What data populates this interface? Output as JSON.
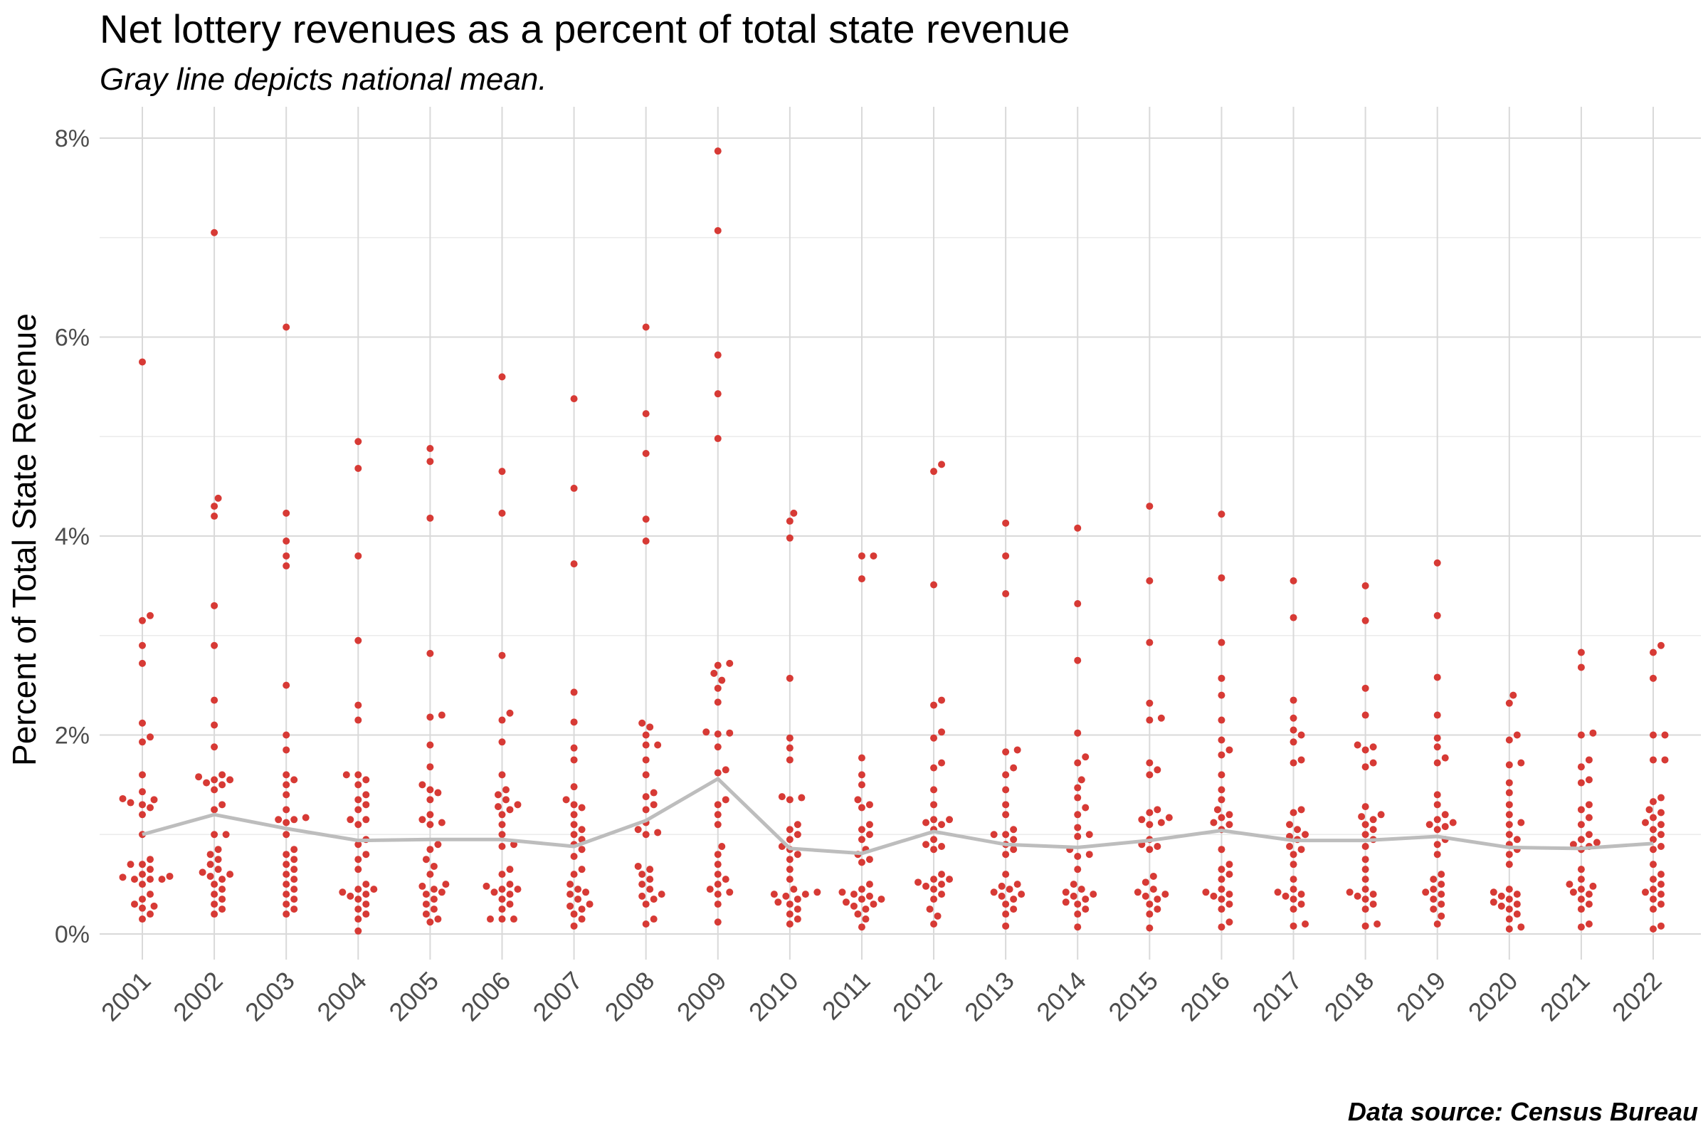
{
  "chart_data": {
    "type": "scatter",
    "subtype": "beeswarm with mean line",
    "title": "Net lottery revenues as a percent of total state revenue",
    "subtitle": "Gray line depicts national mean.",
    "xlabel": "",
    "ylabel": "Percent of Total State Revenue",
    "caption": "Data source: Census Bureau",
    "ylim": [
      -0.35,
      8.3
    ],
    "yticks": [
      0,
      2,
      4,
      6,
      8
    ],
    "ytick_labels": [
      "0%",
      "2%",
      "4%",
      "6%",
      "8%"
    ],
    "grid": true,
    "point_color": "#d73a35",
    "mean_line_color": "#bdbdbd",
    "categories": [
      "2001",
      "2002",
      "2003",
      "2004",
      "2005",
      "2006",
      "2007",
      "2008",
      "2009",
      "2010",
      "2011",
      "2012",
      "2013",
      "2014",
      "2015",
      "2016",
      "2017",
      "2018",
      "2019",
      "2020",
      "2021",
      "2022"
    ],
    "mean": [
      1.0,
      1.2,
      1.06,
      0.94,
      0.95,
      0.95,
      0.88,
      1.14,
      1.56,
      0.86,
      0.81,
      1.03,
      0.9,
      0.87,
      0.94,
      1.04,
      0.94,
      0.94,
      0.98,
      0.87,
      0.86,
      0.91
    ],
    "points": [
      [
        5.75,
        3.2,
        3.15,
        2.9,
        2.72,
        2.12,
        1.98,
        1.93,
        1.6,
        1.43,
        1.36,
        1.35,
        1.32,
        1.3,
        1.27,
        1.2,
        1.0,
        0.75,
        0.7,
        0.7,
        0.65,
        0.6,
        0.58,
        0.57,
        0.55,
        0.55,
        0.55,
        0.5,
        0.4,
        0.35,
        0.3,
        0.28,
        0.26,
        0.2,
        0.15
      ],
      [
        7.05,
        4.38,
        4.3,
        4.2,
        3.3,
        2.9,
        2.35,
        2.1,
        1.88,
        1.6,
        1.58,
        1.55,
        1.55,
        1.52,
        1.5,
        1.45,
        1.3,
        1.25,
        1.0,
        1.0,
        0.85,
        0.8,
        0.75,
        0.7,
        0.65,
        0.62,
        0.6,
        0.58,
        0.55,
        0.5,
        0.45,
        0.4,
        0.35,
        0.3,
        0.25,
        0.2
      ],
      [
        6.1,
        4.23,
        3.95,
        3.8,
        3.7,
        2.5,
        2.0,
        1.85,
        1.6,
        1.55,
        1.5,
        1.4,
        1.25,
        1.17,
        1.15,
        1.15,
        1.12,
        1.0,
        0.85,
        0.8,
        0.75,
        0.7,
        0.65,
        0.6,
        0.55,
        0.5,
        0.45,
        0.4,
        0.35,
        0.3,
        0.25,
        0.2
      ],
      [
        4.95,
        4.68,
        3.8,
        2.95,
        2.3,
        2.15,
        1.6,
        1.6,
        1.55,
        1.5,
        1.4,
        1.35,
        1.3,
        1.25,
        1.15,
        1.15,
        1.1,
        0.95,
        0.9,
        0.8,
        0.75,
        0.65,
        0.5,
        0.45,
        0.45,
        0.42,
        0.4,
        0.38,
        0.35,
        0.3,
        0.25,
        0.2,
        0.15,
        0.03
      ],
      [
        4.88,
        4.75,
        4.18,
        2.82,
        2.2,
        2.18,
        1.9,
        1.68,
        1.5,
        1.45,
        1.42,
        1.35,
        1.2,
        1.15,
        1.12,
        1.1,
        0.9,
        0.85,
        0.75,
        0.68,
        0.6,
        0.5,
        0.48,
        0.45,
        0.42,
        0.4,
        0.35,
        0.3,
        0.25,
        0.2,
        0.15,
        0.12
      ],
      [
        5.6,
        4.65,
        4.23,
        2.8,
        2.22,
        2.15,
        1.93,
        1.6,
        1.45,
        1.4,
        1.35,
        1.3,
        1.28,
        1.25,
        1.2,
        1.1,
        1.0,
        0.9,
        0.88,
        0.65,
        0.6,
        0.5,
        0.48,
        0.45,
        0.45,
        0.42,
        0.4,
        0.35,
        0.3,
        0.25,
        0.15,
        0.15,
        0.15
      ],
      [
        5.38,
        4.48,
        3.72,
        2.43,
        2.13,
        1.87,
        1.75,
        1.48,
        1.35,
        1.3,
        1.27,
        1.2,
        1.1,
        1.05,
        1.0,
        0.95,
        0.9,
        0.85,
        0.78,
        0.65,
        0.6,
        0.5,
        0.45,
        0.42,
        0.4,
        0.35,
        0.3,
        0.28,
        0.25,
        0.2,
        0.15,
        0.08
      ],
      [
        6.1,
        5.23,
        4.83,
        4.17,
        3.95,
        2.12,
        2.08,
        2.0,
        1.9,
        1.9,
        1.75,
        1.6,
        1.42,
        1.38,
        1.3,
        1.25,
        1.12,
        1.05,
        1.02,
        1.0,
        0.68,
        0.65,
        0.6,
        0.55,
        0.5,
        0.45,
        0.4,
        0.38,
        0.35,
        0.3,
        0.15,
        0.1
      ],
      [
        7.87,
        7.07,
        5.82,
        5.43,
        4.98,
        2.72,
        2.7,
        2.62,
        2.55,
        2.47,
        2.33,
        2.03,
        2.02,
        2.01,
        1.88,
        1.65,
        1.62,
        1.35,
        1.3,
        1.2,
        1.1,
        0.88,
        0.8,
        0.7,
        0.6,
        0.55,
        0.5,
        0.45,
        0.42,
        0.4,
        0.3,
        0.12
      ],
      [
        4.23,
        4.15,
        3.98,
        2.57,
        1.97,
        1.87,
        1.75,
        1.38,
        1.37,
        1.35,
        1.1,
        1.05,
        1.0,
        0.95,
        0.88,
        0.85,
        0.8,
        0.75,
        0.65,
        0.55,
        0.45,
        0.42,
        0.4,
        0.4,
        0.38,
        0.35,
        0.32,
        0.3,
        0.25,
        0.2,
        0.15,
        0.1
      ],
      [
        3.8,
        3.8,
        3.57,
        1.77,
        1.6,
        1.5,
        1.35,
        1.3,
        1.27,
        1.1,
        1.05,
        1.0,
        0.95,
        0.85,
        0.8,
        0.75,
        0.72,
        0.5,
        0.45,
        0.42,
        0.4,
        0.38,
        0.35,
        0.35,
        0.32,
        0.3,
        0.28,
        0.25,
        0.2,
        0.15,
        0.07
      ],
      [
        4.72,
        4.65,
        3.51,
        2.35,
        2.3,
        2.03,
        1.97,
        1.72,
        1.67,
        1.45,
        1.3,
        1.15,
        1.15,
        1.12,
        1.1,
        1.05,
        0.95,
        0.9,
        0.88,
        0.85,
        0.6,
        0.55,
        0.55,
        0.52,
        0.5,
        0.48,
        0.45,
        0.4,
        0.35,
        0.25,
        0.18,
        0.1
      ],
      [
        4.13,
        3.8,
        3.42,
        1.85,
        1.83,
        1.67,
        1.6,
        1.45,
        1.3,
        1.2,
        1.05,
        1.0,
        1.0,
        0.95,
        0.9,
        0.85,
        0.8,
        0.6,
        0.5,
        0.48,
        0.45,
        0.42,
        0.4,
        0.38,
        0.35,
        0.3,
        0.25,
        0.2,
        0.08
      ],
      [
        4.08,
        3.32,
        2.75,
        2.02,
        1.78,
        1.72,
        1.55,
        1.47,
        1.37,
        1.27,
        1.2,
        1.07,
        1.0,
        0.98,
        0.85,
        0.8,
        0.78,
        0.65,
        0.5,
        0.45,
        0.42,
        0.4,
        0.38,
        0.35,
        0.32,
        0.3,
        0.25,
        0.2,
        0.07
      ],
      [
        4.3,
        3.55,
        2.93,
        2.32,
        2.17,
        2.15,
        1.72,
        1.65,
        1.6,
        1.25,
        1.22,
        1.17,
        1.15,
        1.12,
        1.1,
        0.95,
        0.9,
        0.88,
        0.85,
        0.58,
        0.52,
        0.45,
        0.42,
        0.4,
        0.38,
        0.35,
        0.3,
        0.25,
        0.2,
        0.06
      ],
      [
        4.22,
        3.58,
        2.93,
        2.57,
        2.4,
        2.15,
        1.95,
        1.85,
        1.8,
        1.6,
        1.45,
        1.35,
        1.25,
        1.2,
        1.17,
        1.12,
        1.1,
        1.05,
        0.85,
        0.7,
        0.65,
        0.6,
        0.55,
        0.45,
        0.42,
        0.4,
        0.38,
        0.35,
        0.3,
        0.25,
        0.12,
        0.07
      ],
      [
        3.55,
        3.18,
        2.35,
        2.17,
        2.05,
        2.0,
        1.93,
        1.75,
        1.72,
        1.25,
        1.22,
        1.1,
        1.05,
        1.0,
        0.98,
        0.95,
        0.88,
        0.85,
        0.8,
        0.7,
        0.55,
        0.45,
        0.42,
        0.4,
        0.38,
        0.35,
        0.3,
        0.25,
        0.1,
        0.08
      ],
      [
        3.5,
        3.15,
        2.47,
        2.2,
        1.9,
        1.88,
        1.85,
        1.72,
        1.68,
        1.28,
        1.2,
        1.18,
        1.15,
        1.1,
        1.05,
        1.0,
        0.95,
        0.88,
        0.75,
        0.65,
        0.55,
        0.45,
        0.42,
        0.4,
        0.38,
        0.35,
        0.3,
        0.25,
        0.1,
        0.08
      ],
      [
        3.73,
        3.2,
        2.58,
        2.2,
        1.97,
        1.88,
        1.77,
        1.72,
        1.4,
        1.3,
        1.2,
        1.15,
        1.12,
        1.1,
        1.08,
        1.05,
        0.95,
        0.9,
        0.8,
        0.6,
        0.55,
        0.5,
        0.45,
        0.42,
        0.4,
        0.35,
        0.3,
        0.25,
        0.18,
        0.1
      ],
      [
        2.4,
        2.32,
        2.0,
        1.95,
        1.72,
        1.7,
        1.52,
        1.42,
        1.3,
        1.2,
        1.12,
        1.1,
        1.0,
        0.95,
        0.9,
        0.85,
        0.8,
        0.7,
        0.45,
        0.42,
        0.4,
        0.38,
        0.35,
        0.32,
        0.3,
        0.28,
        0.25,
        0.2,
        0.15,
        0.07,
        0.05
      ],
      [
        2.83,
        2.68,
        2.02,
        2.0,
        1.75,
        1.68,
        1.55,
        1.52,
        1.3,
        1.25,
        1.17,
        1.1,
        1.0,
        0.95,
        0.92,
        0.9,
        0.88,
        0.85,
        0.65,
        0.55,
        0.5,
        0.48,
        0.45,
        0.42,
        0.4,
        0.35,
        0.3,
        0.25,
        0.1,
        0.07
      ],
      [
        2.9,
        2.83,
        2.57,
        2.0,
        2.0,
        1.75,
        1.75,
        1.37,
        1.33,
        1.25,
        1.22,
        1.17,
        1.12,
        1.1,
        1.05,
        1.0,
        0.95,
        0.88,
        0.85,
        0.7,
        0.6,
        0.55,
        0.5,
        0.45,
        0.42,
        0.4,
        0.35,
        0.3,
        0.25,
        0.08,
        0.05
      ]
    ]
  }
}
